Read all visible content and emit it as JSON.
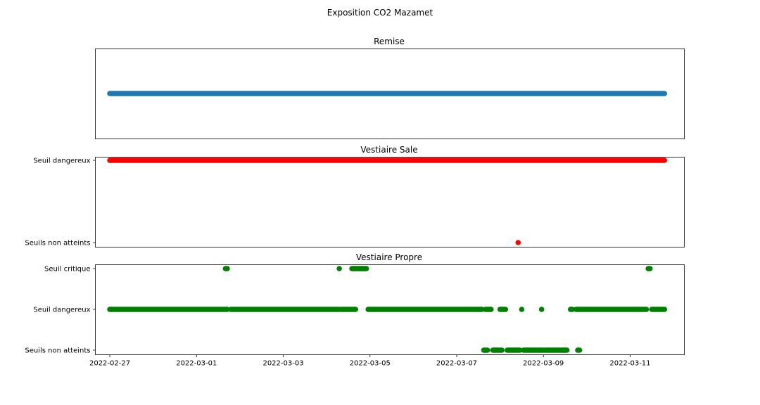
{
  "figure": {
    "title": "Exposition CO2 Mazamet"
  },
  "colors": {
    "remise": "#1f77b4",
    "vestiaire_sale": "#ff0000",
    "vestiaire_propre": "#008000"
  },
  "x_axis": {
    "min": "2022-02-26T16:00",
    "max": "2022-03-12T06:00",
    "ticks": [
      "2022-02-27",
      "2022-03-01",
      "2022-03-03",
      "2022-03-05",
      "2022-03-07",
      "2022-03-09",
      "2022-03-11"
    ]
  },
  "chart_data": [
    {
      "type": "scatter",
      "title": "Remise",
      "color": "#1f77b4",
      "y_categories": [],
      "segments": [
        {
          "from": "2022-02-27T00:00",
          "to": "2022-03-11T19:00",
          "y": 0
        }
      ]
    },
    {
      "type": "scatter",
      "title": "Vestiaire Sale",
      "color": "#ff0000",
      "y_categories": [
        "Seuils non atteints",
        "Seuil dangereux"
      ],
      "segments": [
        {
          "from": "2022-02-27T00:00",
          "to": "2022-03-11T19:00",
          "y": "Seuil dangereux"
        }
      ],
      "points": [
        {
          "x": "2022-03-08T10:00",
          "y": "Seuils non atteints"
        }
      ]
    },
    {
      "type": "scatter",
      "title": "Vestiaire Propre",
      "color": "#008000",
      "y_categories": [
        "Seuils non atteints",
        "Seuil dangereux",
        "Seuil critique"
      ],
      "segments": [
        {
          "from": "2022-02-27T00:00",
          "to": "2022-03-01T17:00",
          "y": "Seuil dangereux"
        },
        {
          "from": "2022-03-01T19:00",
          "to": "2022-03-04T07:00",
          "y": "Seuil dangereux"
        },
        {
          "from": "2022-03-04T08:00",
          "to": "2022-03-04T16:00",
          "y": "Seuil dangereux"
        },
        {
          "from": "2022-03-04T23:00",
          "to": "2022-03-07T14:00",
          "y": "Seuil dangereux"
        },
        {
          "from": "2022-03-07T16:00",
          "to": "2022-03-07T19:00",
          "y": "Seuil dangereux"
        },
        {
          "from": "2022-03-08T00:00",
          "to": "2022-03-08T03:00",
          "y": "Seuil dangereux"
        },
        {
          "from": "2022-03-09T15:00",
          "to": "2022-03-09T16:00",
          "y": "Seuil dangereux"
        },
        {
          "from": "2022-03-09T18:00",
          "to": "2022-03-11T09:00",
          "y": "Seuil dangereux"
        },
        {
          "from": "2022-03-11T12:00",
          "to": "2022-03-11T19:00",
          "y": "Seuil dangereux"
        },
        {
          "from": "2022-03-07T15:00",
          "to": "2022-03-07T17:00",
          "y": "Seuils non atteints"
        },
        {
          "from": "2022-03-07T20:00",
          "to": "2022-03-08T01:00",
          "y": "Seuils non atteints"
        },
        {
          "from": "2022-03-08T04:00",
          "to": "2022-03-08T11:00",
          "y": "Seuils non atteints"
        },
        {
          "from": "2022-03-08T13:00",
          "to": "2022-03-09T00:00",
          "y": "Seuils non atteints"
        },
        {
          "from": "2022-03-09T01:00",
          "to": "2022-03-09T13:00",
          "y": "Seuils non atteints"
        },
        {
          "from": "2022-03-09T19:00",
          "to": "2022-03-09T20:00",
          "y": "Seuils non atteints"
        },
        {
          "from": "2022-03-01T16:00",
          "to": "2022-03-01T17:00",
          "y": "Seuil critique"
        },
        {
          "from": "2022-03-04T14:00",
          "to": "2022-03-04T22:00",
          "y": "Seuil critique"
        },
        {
          "from": "2022-03-11T10:00",
          "to": "2022-03-11T11:00",
          "y": "Seuil critique"
        }
      ],
      "points": [
        {
          "x": "2022-03-04T07:00",
          "y": "Seuil critique"
        },
        {
          "x": "2022-03-08T12:00",
          "y": "Seuil dangereux"
        },
        {
          "x": "2022-03-08T23:00",
          "y": "Seuil dangereux"
        }
      ]
    }
  ]
}
